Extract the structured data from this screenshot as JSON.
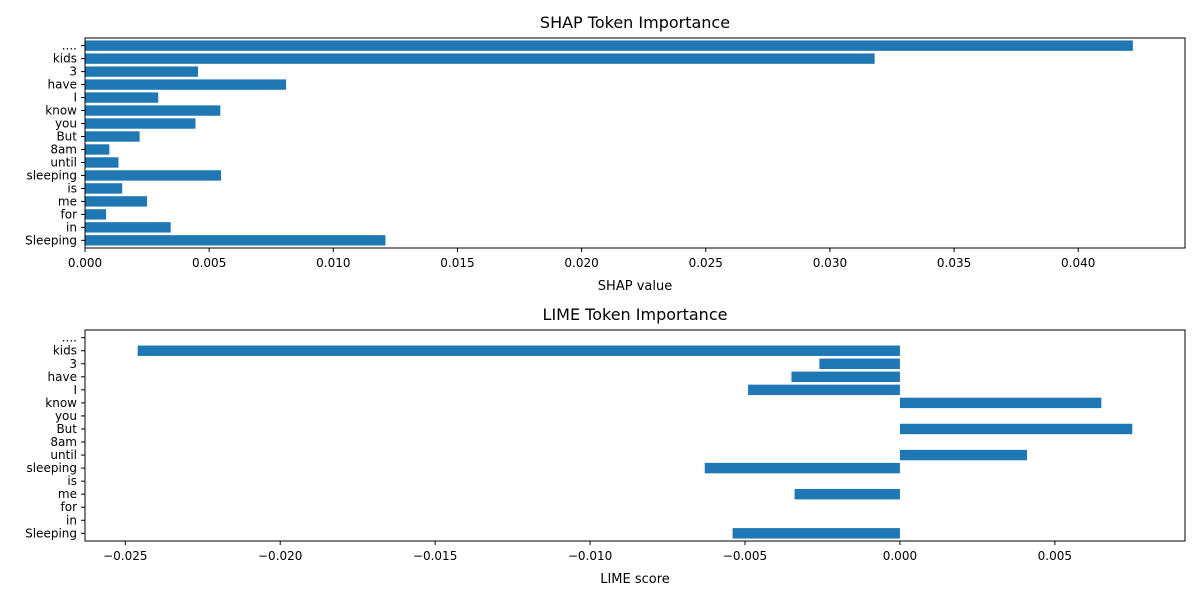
{
  "chart_data": [
    {
      "type": "bar",
      "orientation": "horizontal",
      "title": "SHAP Token Importance",
      "xlabel": "SHAP value",
      "ylabel": "",
      "categories": [
        "....",
        "kids",
        "3",
        "have",
        "I",
        "know",
        "you",
        "But",
        "8am",
        "until",
        "sleeping",
        "is",
        "me",
        "for",
        "in",
        "Sleeping"
      ],
      "values": [
        0.0422,
        0.0318,
        0.00455,
        0.0081,
        0.00295,
        0.00545,
        0.00445,
        0.0022,
        0.00098,
        0.00135,
        0.00548,
        0.0015,
        0.0025,
        0.00085,
        0.00345,
        0.0121
      ],
      "xlim": [
        0.0,
        0.0443
      ],
      "xticks": [
        0.0,
        0.005,
        0.01,
        0.015,
        0.02,
        0.025,
        0.03,
        0.035,
        0.04
      ],
      "xtick_labels": [
        "0.000",
        "0.005",
        "0.010",
        "0.015",
        "0.020",
        "0.025",
        "0.030",
        "0.035",
        "0.040"
      ],
      "grid": false,
      "color": "#1f77b4"
    },
    {
      "type": "bar",
      "orientation": "horizontal",
      "title": "LIME Token Importance",
      "xlabel": "LIME score",
      "ylabel": "",
      "categories": [
        "....",
        "kids",
        "3",
        "have",
        "I",
        "know",
        "you",
        "But",
        "8am",
        "until",
        "sleeping",
        "is",
        "me",
        "for",
        "in",
        "Sleeping"
      ],
      "values": [
        0,
        -0.0246,
        -0.0026,
        -0.0035,
        -0.0049,
        0.0065,
        0,
        0.0075,
        0,
        0.0041,
        -0.0063,
        0,
        -0.0034,
        0,
        0,
        -0.0054
      ],
      "xlim": [
        -0.0263,
        0.0092
      ],
      "xticks": [
        -0.025,
        -0.02,
        -0.015,
        -0.01,
        -0.005,
        0.0,
        0.005
      ],
      "xtick_labels": [
        "−0.025",
        "−0.020",
        "−0.015",
        "−0.010",
        "−0.005",
        "0.000",
        "0.005"
      ],
      "grid": false,
      "color": "#1f77b4"
    }
  ]
}
